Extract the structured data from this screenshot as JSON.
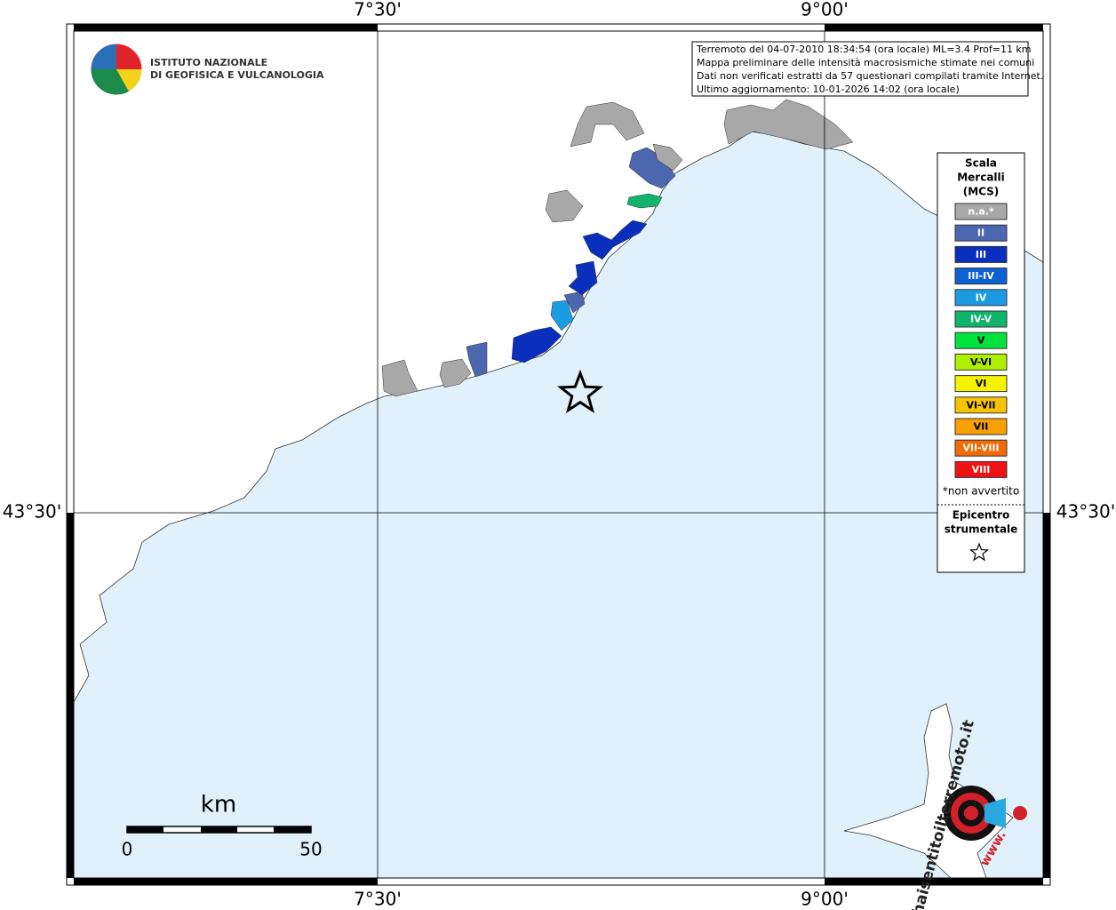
{
  "map": {
    "grid_labels": {
      "lon": [
        "7°30'",
        "9°00'"
      ],
      "lat": [
        "43°30'"
      ]
    },
    "logo": {
      "line1": "ISTITUTO NAZIONALE",
      "line2": "DI GEOFISICA E VULCANOLOGIA"
    },
    "info": [
      "Terremoto del 04-07-2010 18:34:54 (ora locale) ML=3.4 Prof=11 km",
      "Mappa preliminare delle intensità macrosismiche stimate nei comuni",
      "Dati non verificati estratti da 57 questionari compilati tramite Internet.",
      "Ultimo aggiornamento: 10-01-2026 14:02 (ora locale)"
    ],
    "legend": {
      "title": [
        "Scala",
        "Mercalli",
        "(MCS)"
      ],
      "items": [
        {
          "label": "n.a.*",
          "color": "#a8a8a8"
        },
        {
          "label": "II",
          "color": "#4c66b0"
        },
        {
          "label": "III",
          "color": "#0b2fbd"
        },
        {
          "label": "III-IV",
          "color": "#0d62d3"
        },
        {
          "label": "IV",
          "color": "#1b9ce2"
        },
        {
          "label": "IV-V",
          "color": "#10b46c"
        },
        {
          "label": "V",
          "color": "#00e33c"
        },
        {
          "label": "V-VI",
          "color": "#aef000"
        },
        {
          "label": "VI",
          "color": "#f4f400"
        },
        {
          "label": "VI-VII",
          "color": "#f5c400"
        },
        {
          "label": "VII",
          "color": "#f8a000"
        },
        {
          "label": "VII-VIII",
          "color": "#f26a00"
        },
        {
          "label": "VIII",
          "color": "#f01212"
        }
      ],
      "note": "*non avvertito",
      "epicenter": [
        "Epicentro",
        "strumentale"
      ]
    },
    "scale": {
      "unit": "km",
      "start": "0",
      "end": "50"
    },
    "watermark": {
      "site": "haisentitoilterremoto.it",
      "www": "www."
    }
  }
}
